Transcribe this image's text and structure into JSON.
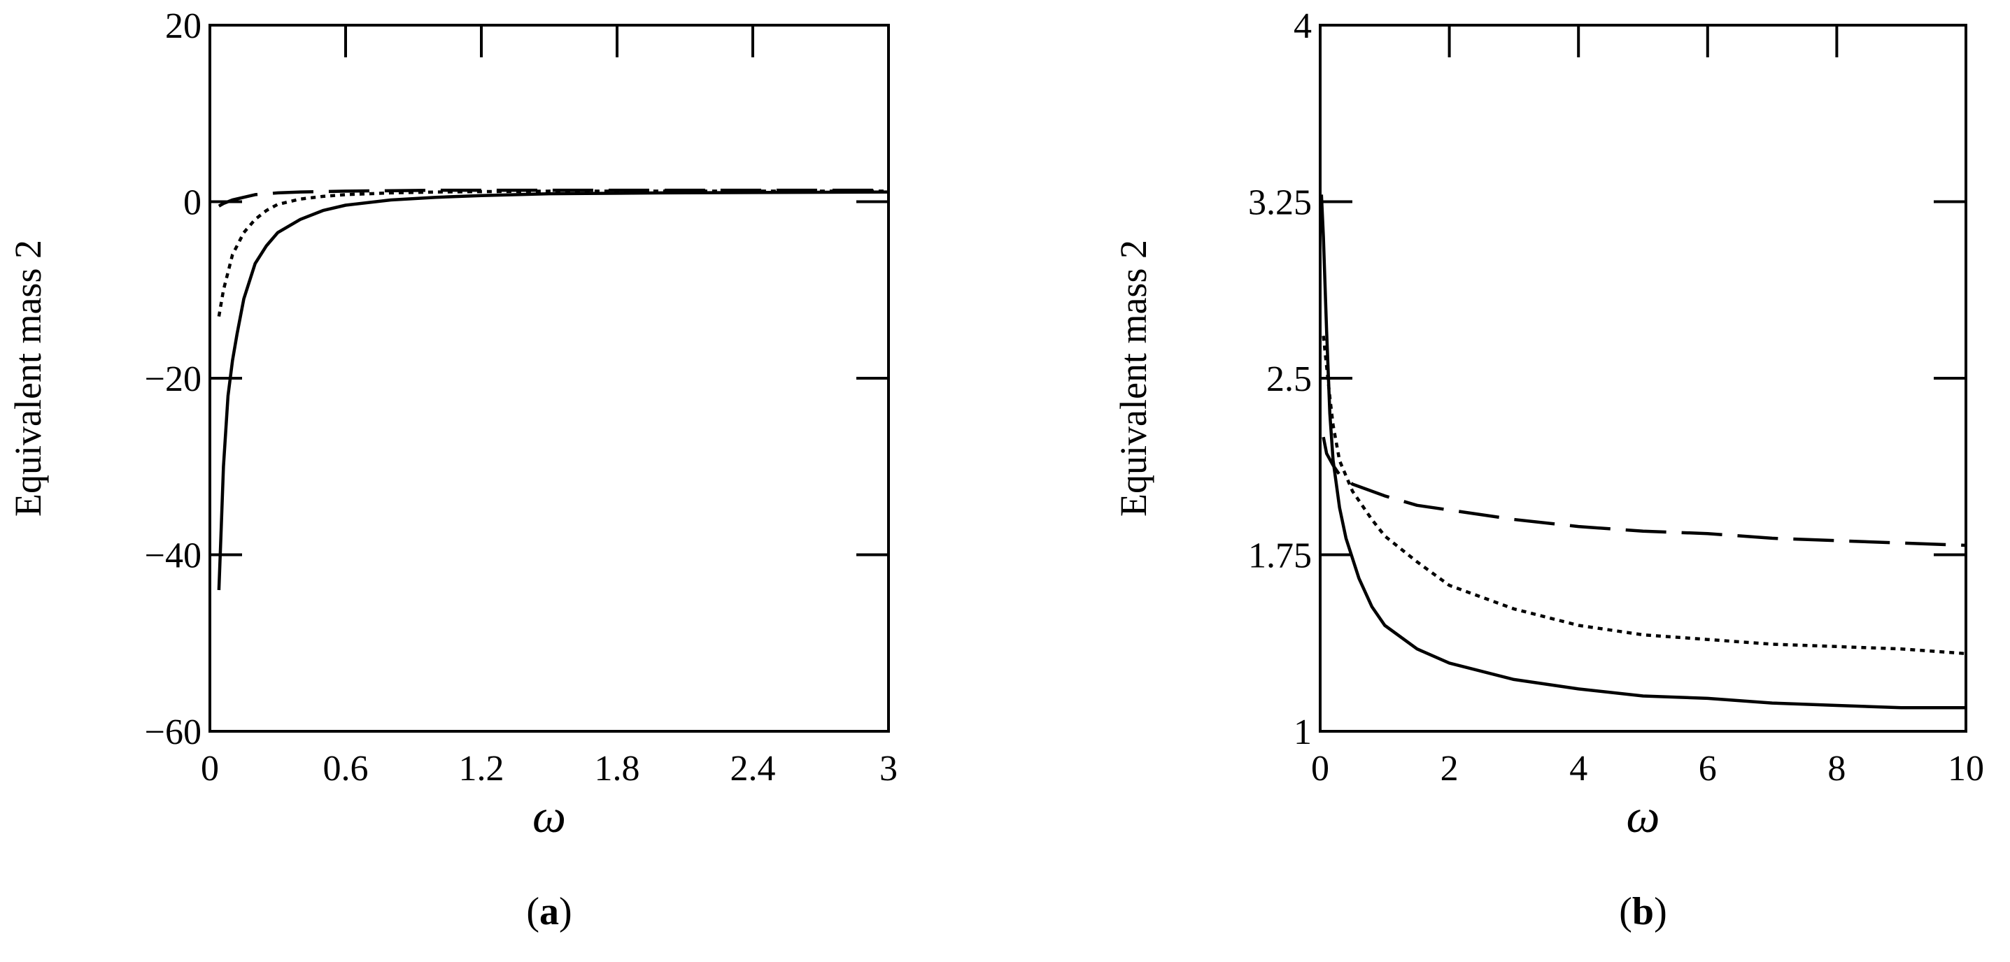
{
  "chart_data": [
    {
      "panel_label": "a",
      "type": "line",
      "xlabel": "ω",
      "ylabel": "Equivalent mass 2",
      "xlim": [
        0,
        3
      ],
      "ylim": [
        -60,
        20
      ],
      "xticks": [
        0,
        0.6,
        1.2,
        1.8,
        2.4,
        3
      ],
      "yticks": [
        -60,
        -40,
        -20,
        0,
        20
      ],
      "xtick_labels": [
        "0",
        "0.6",
        "1.2",
        "1.8",
        "2.4",
        "3"
      ],
      "ytick_labels": [
        "−60",
        "−40",
        "−20",
        "0",
        "20"
      ],
      "grid": false,
      "series": [
        {
          "style": "solid",
          "x": [
            0.04,
            0.05,
            0.06,
            0.08,
            0.1,
            0.12,
            0.15,
            0.2,
            0.25,
            0.3,
            0.4,
            0.5,
            0.6,
            0.8,
            1.0,
            1.2,
            1.5,
            2.0,
            2.5,
            3.0
          ],
          "y": [
            -44,
            -37,
            -30,
            -22,
            -18,
            -15,
            -11,
            -7,
            -5,
            -3.5,
            -2,
            -1,
            -0.4,
            0.2,
            0.5,
            0.7,
            0.9,
            1.0,
            1.05,
            1.1
          ]
        },
        {
          "style": "dotted",
          "x": [
            0.04,
            0.06,
            0.08,
            0.1,
            0.15,
            0.2,
            0.25,
            0.3,
            0.4,
            0.5,
            0.6,
            0.8,
            1.0,
            1.5,
            2.0,
            3.0
          ],
          "y": [
            -13,
            -10,
            -8,
            -6,
            -3.5,
            -2,
            -1,
            -0.3,
            0.3,
            0.6,
            0.8,
            1.0,
            1.1,
            1.2,
            1.2,
            1.2
          ]
        },
        {
          "style": "dashed",
          "x": [
            0.04,
            0.06,
            0.1,
            0.15,
            0.2,
            0.3,
            0.4,
            0.6,
            1.0,
            1.5,
            2.0,
            3.0
          ],
          "y": [
            -0.5,
            -0.2,
            0.2,
            0.5,
            0.8,
            1.0,
            1.1,
            1.2,
            1.3,
            1.3,
            1.3,
            1.3
          ]
        }
      ]
    },
    {
      "panel_label": "b",
      "type": "line",
      "xlabel": "ω",
      "ylabel": "Equivalent mass 2",
      "xlim": [
        0,
        10
      ],
      "ylim": [
        1,
        4
      ],
      "xticks": [
        0,
        2,
        4,
        6,
        8,
        10
      ],
      "yticks": [
        1,
        1.75,
        2.5,
        3.25,
        4
      ],
      "xtick_labels": [
        "0",
        "2",
        "4",
        "6",
        "8",
        "10"
      ],
      "ytick_labels": [
        "1",
        "1.75",
        "2.5",
        "3.25",
        "4"
      ],
      "grid": false,
      "series": [
        {
          "style": "solid",
          "x": [
            0.02,
            0.05,
            0.1,
            0.15,
            0.2,
            0.3,
            0.4,
            0.6,
            0.8,
            1.0,
            1.5,
            2.0,
            3.0,
            4.0,
            5.0,
            6.0,
            7.0,
            8.0,
            9.0,
            10.0
          ],
          "y": [
            3.28,
            3.1,
            2.7,
            2.35,
            2.15,
            1.95,
            1.82,
            1.65,
            1.53,
            1.45,
            1.35,
            1.29,
            1.22,
            1.18,
            1.15,
            1.14,
            1.12,
            1.11,
            1.1,
            1.1
          ]
        },
        {
          "style": "dotted",
          "x": [
            0.05,
            0.1,
            0.15,
            0.2,
            0.3,
            0.5,
            0.8,
            1.0,
            1.5,
            2.0,
            3.0,
            4.0,
            5.0,
            6.0,
            7.0,
            8.0,
            9.0,
            10.0
          ],
          "y": [
            2.68,
            2.55,
            2.42,
            2.3,
            2.15,
            2.02,
            1.9,
            1.83,
            1.72,
            1.62,
            1.52,
            1.45,
            1.41,
            1.39,
            1.37,
            1.36,
            1.35,
            1.33
          ]
        },
        {
          "style": "dashed",
          "x": [
            0.05,
            0.1,
            0.2,
            0.3,
            0.5,
            1.0,
            1.5,
            2.0,
            3.0,
            4.0,
            5.0,
            6.0,
            7.0,
            8.0,
            9.0,
            10.0
          ],
          "y": [
            2.25,
            2.18,
            2.13,
            2.09,
            2.05,
            2.0,
            1.96,
            1.94,
            1.9,
            1.87,
            1.85,
            1.84,
            1.82,
            1.81,
            1.8,
            1.79
          ]
        }
      ]
    }
  ]
}
